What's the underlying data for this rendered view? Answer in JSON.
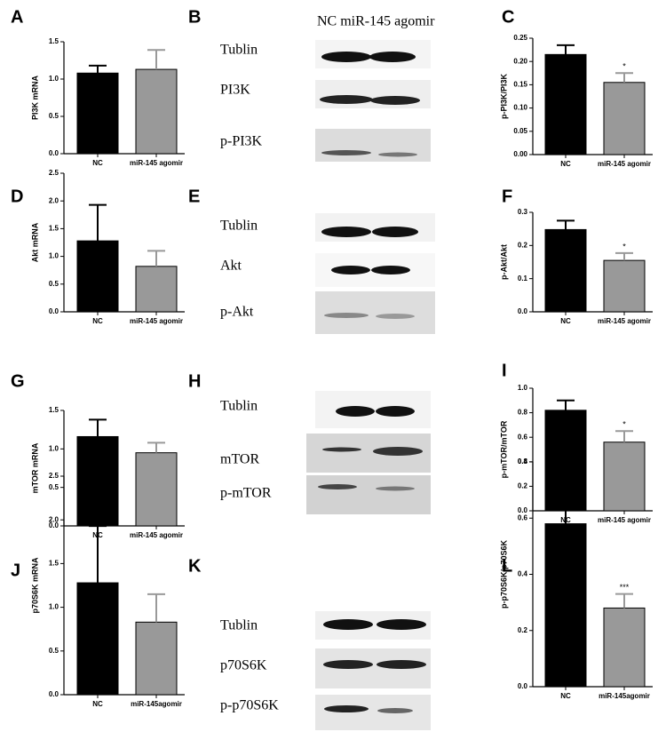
{
  "chart_data": [
    {
      "type": "bar",
      "panel": "A",
      "ylabel": "PI3K mRNA",
      "categories": [
        "NC",
        "miR-145 agomir"
      ],
      "values": [
        1.08,
        1.13
      ],
      "errors": [
        0.1,
        0.26
      ],
      "colors": [
        "#000000",
        "#999999"
      ],
      "ylim": [
        0,
        1.5
      ],
      "yticks": [
        {
          "value": 0,
          "label": "0.0"
        },
        0.5,
        {
          "value": 1,
          "label": "1.0"
        },
        1.5
      ]
    },
    {
      "type": "bar",
      "panel": "C",
      "ylabel": "p-PI3K/PI3K",
      "categories": [
        "NC",
        "miR-145 agomir"
      ],
      "values": [
        0.215,
        0.155
      ],
      "errors": [
        0.02,
        0.02
      ],
      "annotations": [
        null,
        "*"
      ],
      "colors": [
        "#000000",
        "#999999"
      ],
      "ylim": [
        0,
        0.25
      ],
      "yticks": [
        {
          "value": 0,
          "label": "0.00"
        },
        0.05,
        {
          "value": 0.1,
          "label": "0.10"
        },
        0.15,
        {
          "value": 0.2,
          "label": "0.20"
        },
        0.25
      ]
    },
    {
      "type": "bar",
      "panel": "D",
      "ylabel": "Akt mRNA",
      "categories": [
        "NC",
        "miR-145 agomir"
      ],
      "values": [
        1.28,
        0.82
      ],
      "errors": [
        0.65,
        0.28
      ],
      "colors": [
        "#000000",
        "#999999"
      ],
      "ylim": [
        0,
        2.5
      ],
      "yticks": [
        {
          "value": 0,
          "label": "0.0"
        },
        0.5,
        {
          "value": 1,
          "label": "1.0"
        },
        1.5,
        {
          "value": 2,
          "label": "2.0"
        },
        2.5
      ]
    },
    {
      "type": "bar",
      "panel": "F",
      "ylabel": "p-Akt/Akt",
      "categories": [
        "NC",
        "miR-145 agomir"
      ],
      "values": [
        0.248,
        0.155
      ],
      "errors": [
        0.027,
        0.022
      ],
      "annotations": [
        null,
        "*"
      ],
      "colors": [
        "#000000",
        "#999999"
      ],
      "ylim": [
        0,
        0.3
      ],
      "yticks": [
        {
          "value": 0,
          "label": "0.0"
        },
        0.1,
        0.2,
        0.3
      ]
    },
    {
      "type": "bar",
      "panel": "G",
      "ylabel": "mTOR mRNA",
      "categories": [
        "NC",
        "miR-145 agomir"
      ],
      "values": [
        1.16,
        0.95
      ],
      "errors": [
        0.22,
        0.13
      ],
      "colors": [
        "#000000",
        "#999999"
      ],
      "ylim": [
        0,
        1.5
      ],
      "yticks": [
        {
          "value": 0,
          "label": "0.0"
        },
        0.5,
        {
          "value": 1,
          "label": "1.0"
        },
        1.5
      ]
    },
    {
      "type": "bar",
      "panel": "I",
      "ylabel": "p-mTOR/mTOR",
      "categories": [
        "NC",
        "miR-145 agomir"
      ],
      "values": [
        0.82,
        0.56
      ],
      "errors": [
        0.08,
        0.09
      ],
      "annotations": [
        null,
        "*"
      ],
      "colors": [
        "#000000",
        "#999999"
      ],
      "ylim": [
        0,
        1
      ],
      "yticks": [
        {
          "value": 0,
          "label": "0.0"
        },
        0.2,
        0.4,
        0.6,
        0.8,
        {
          "value": 1,
          "label": "1.0"
        }
      ]
    },
    {
      "type": "bar",
      "panel": "J",
      "ylabel": "p70S6K mRNA",
      "categories": [
        "NC",
        "miR-145agomir"
      ],
      "values": [
        1.28,
        0.83
      ],
      "errors": [
        0.65,
        0.32
      ],
      "colors": [
        "#000000",
        "#999999"
      ],
      "ylim": [
        0,
        2.5
      ],
      "yticks": [
        {
          "value": 0,
          "label": "0.0"
        },
        0.5,
        {
          "value": 1,
          "label": "1.0"
        },
        1.5,
        {
          "value": 2,
          "label": "2.0"
        },
        2.5
      ]
    },
    {
      "type": "bar",
      "panel": "L",
      "ylabel": "p-p70S6K/p70S6K",
      "categories": [
        "NC",
        "miR-145agomir"
      ],
      "values": [
        0.58,
        0.28
      ],
      "errors": [
        0.09,
        0.05
      ],
      "annotations": [
        null,
        "***"
      ],
      "colors": [
        "#000000",
        "#999999"
      ],
      "ylim": [
        0,
        0.8
      ],
      "yticks": [
        {
          "value": 0,
          "label": "0.0"
        },
        0.2,
        0.4,
        0.6,
        0.8
      ]
    }
  ],
  "blots": [
    {
      "panel": "B",
      "header": "NC  miR-145 agomir",
      "labels": [
        "Tublin",
        "PI3K",
        "p-PI3K"
      ]
    },
    {
      "panel": "E",
      "labels": [
        "Tublin",
        "Akt",
        "p-Akt"
      ]
    },
    {
      "panel": "H",
      "labels": [
        "Tublin",
        "mTOR",
        "p-mTOR"
      ]
    },
    {
      "panel": "K",
      "labels": [
        "Tublin",
        "p70S6K",
        "p-p70S6K"
      ]
    }
  ]
}
